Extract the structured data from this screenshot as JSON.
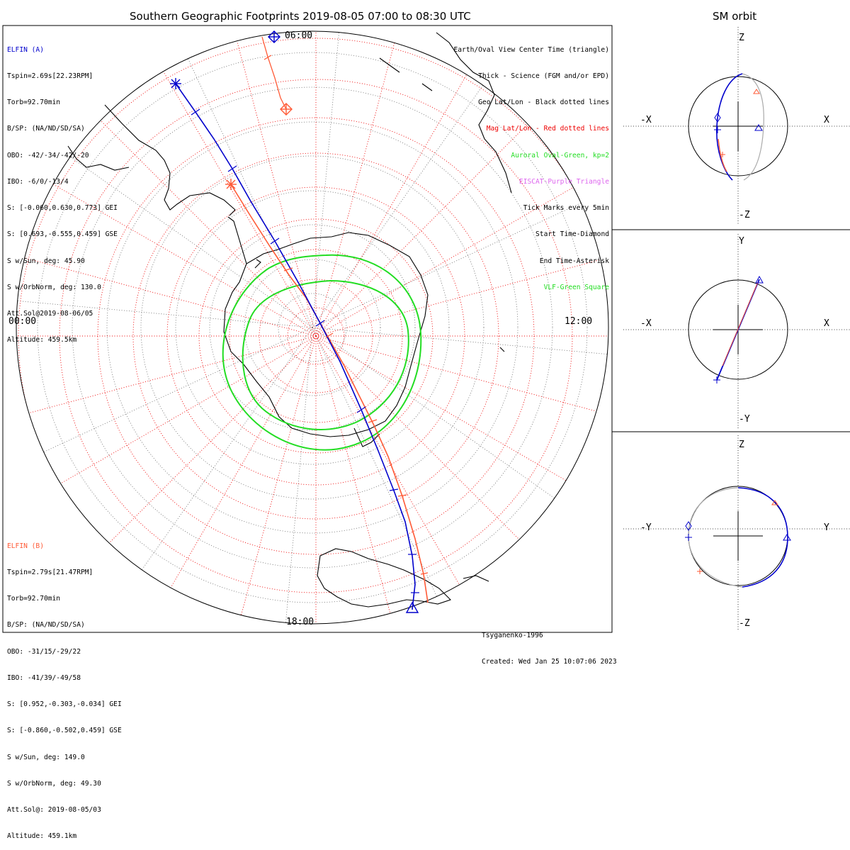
{
  "main_title": "Southern Geographic Footprints 2019-08-05 07:00 to 08:30 UTC",
  "side_title": "SM orbit",
  "colors": {
    "elfin_a": "#0000cc",
    "elfin_b": "#ff5a36",
    "auroral_oval": "#22dd22",
    "geo_grid": "#000000",
    "mag_grid": "#ee0000",
    "eiscat": "#dd66ee",
    "vlf": "#22dd22",
    "orbit_gray": "#aaaaaa"
  },
  "elfin_a": {
    "name": "ELFIN (A)",
    "lines": [
      "Tspin=2.69s[22.23RPM]",
      "Torb=92.70min",
      "B/SP: (NA/ND/SD/SA)",
      "OBO: -42/-34/-42/-20",
      "IBO: -6/0/-13/4",
      "S: [-0.060,0.630,0.773] GEI",
      "S: [0.693,-0.555,0.459] GSE",
      "S w/Sun, deg: 45.90",
      "S w/OrbNorm, deg: 130.0",
      "Att.Sol@2019-08-06/05",
      "Altitude: 459.5km"
    ]
  },
  "elfin_b": {
    "name": "ELFIN (B)",
    "lines": [
      "Tspin=2.79s[21.47RPM]",
      "Torb=92.70min",
      "B/SP: (NA/ND/SD/SA)",
      "OBO: -31/15/-29/22",
      "IBO: -41/39/-49/58",
      "S: [0.952,-0.303,-0.034] GEI",
      "S: [-0.860,-0.502,0.459] GSE",
      "S w/Sun, deg: 149.0",
      "S w/OrbNorm, deg: 49.30",
      "Att.Sol@: 2019-08-05/03",
      "Altitude: 459.1km"
    ]
  },
  "legend": [
    {
      "text": "Earth/Oval View Center Time (triangle)",
      "color": "#000000"
    },
    {
      "text": "Thick - Science (FGM and/or EPD)",
      "color": "#000000"
    },
    {
      "text": "Geo Lat/Lon - Black dotted lines",
      "color": "#000000"
    },
    {
      "text": "Mag Lat/Lon - Red dotted lines",
      "color": "#ee0000"
    },
    {
      "text": "Auroral Oval-Green, kp=2",
      "color": "#22dd22"
    },
    {
      "text": "EISCAT-Purple Triangle",
      "color": "#dd66ee"
    },
    {
      "text": "Tick Marks every 5min",
      "color": "#000000"
    },
    {
      "text": "Start Time-Diamond",
      "color": "#000000"
    },
    {
      "text": "End Time-Asterisk",
      "color": "#000000"
    },
    {
      "text": "VLF-Green Square",
      "color": "#22dd22"
    }
  ],
  "hour_labels": {
    "top": "06:00",
    "left": "00:00",
    "right": "12:00",
    "bottom": "18:00"
  },
  "credits": {
    "model": "Tsyganenko-1996",
    "created": "Created: Wed Jan 25 10:07:06 2023"
  },
  "panels": [
    {
      "top": "Z",
      "bottom": "-Z",
      "left": "-X",
      "right": "X"
    },
    {
      "top": "Y",
      "bottom": "-Y",
      "left": "-X",
      "right": "X"
    },
    {
      "top": "Z",
      "bottom": "-Z",
      "left": "-Y",
      "right": "Y"
    }
  ]
}
